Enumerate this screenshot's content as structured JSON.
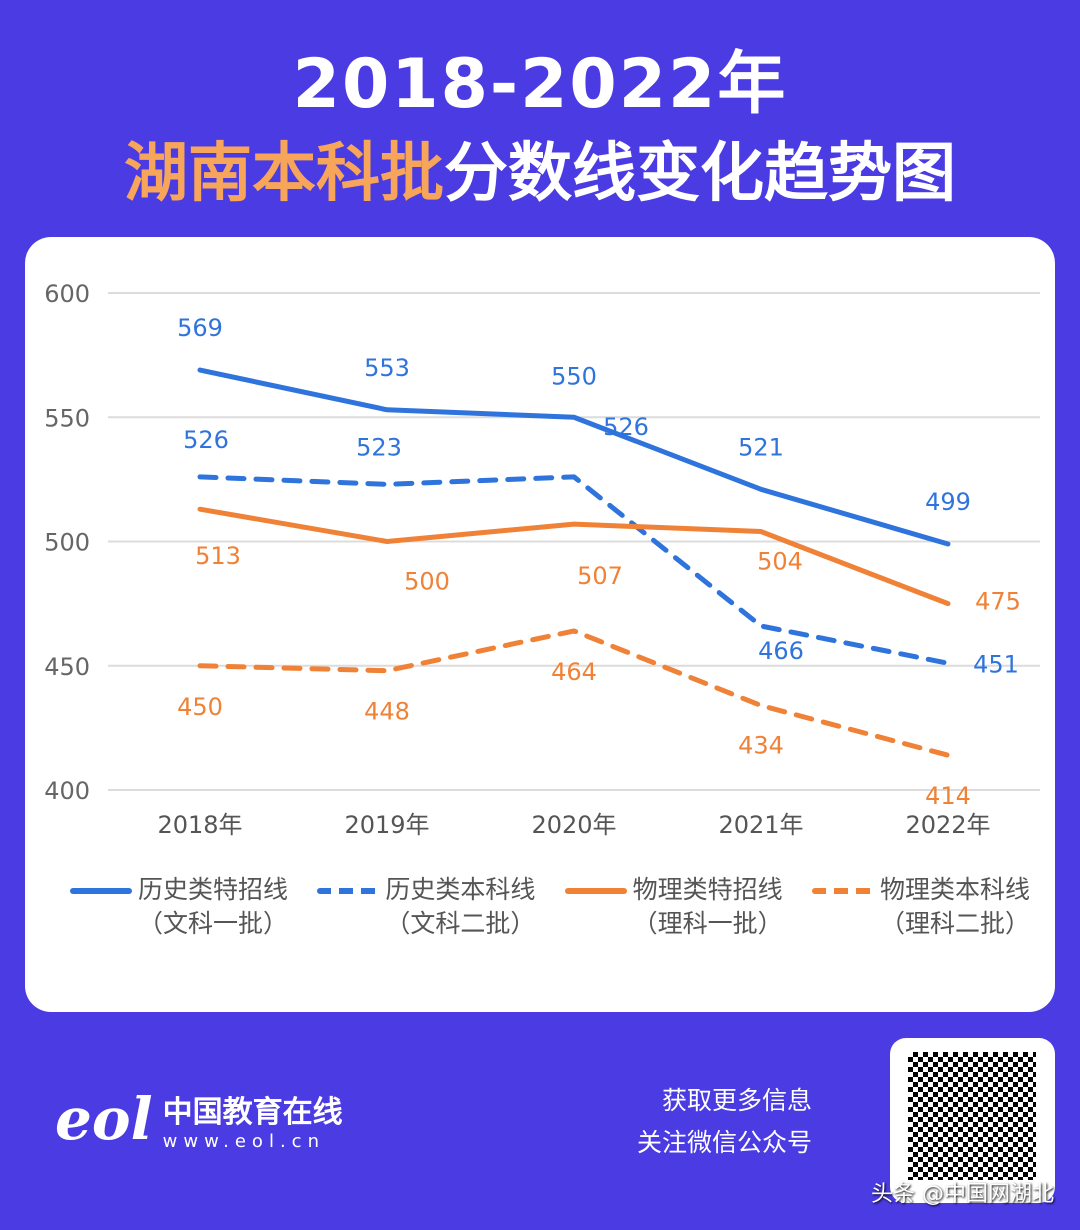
{
  "title_line1": "2018-2022年",
  "title_line2_highlight": "湖南本科批",
  "title_line2_rest": "分数线变化趋势图",
  "chart_data": {
    "type": "line",
    "categories": [
      "2018年",
      "2019年",
      "2020年",
      "2021年",
      "2022年"
    ],
    "ylim": [
      400,
      600
    ],
    "yticks": [
      400,
      450,
      500,
      550,
      600
    ],
    "grid": true,
    "legend_position": "bottom",
    "series": [
      {
        "name": "历史类特招线",
        "sub": "（文科一批）",
        "values": [
          569,
          553,
          550,
          521,
          499
        ],
        "color": "#2f74dc",
        "dashed": false
      },
      {
        "name": "历史类本科线",
        "sub": "（文科二批）",
        "values": [
          526,
          523,
          526,
          466,
          451
        ],
        "color": "#2f74dc",
        "dashed": true
      },
      {
        "name": "物理类特招线",
        "sub": "（理科一批）",
        "values": [
          513,
          500,
          507,
          504,
          475
        ],
        "color": "#ef8236",
        "dashed": false
      },
      {
        "name": "物理类本科线",
        "sub": "（理科二批）",
        "values": [
          450,
          448,
          464,
          434,
          414
        ],
        "color": "#ef8236",
        "dashed": true
      }
    ]
  },
  "footer": {
    "logo_text": "eol",
    "brand_name": "中国教育在线",
    "brand_url": "www.eol.cn",
    "info_line1": "获取更多信息",
    "info_line2": "关注微信公众号",
    "watermark": "头条 @中国网湖北"
  }
}
